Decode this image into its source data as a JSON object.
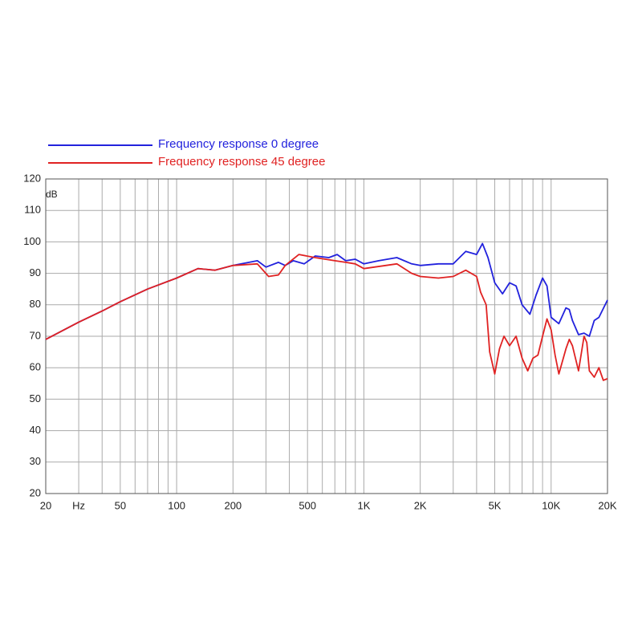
{
  "chart_data": {
    "type": "line",
    "xscale": "log",
    "grid": true,
    "ylabel": "dB",
    "xlim": [
      20,
      20000
    ],
    "ylim": [
      20,
      120
    ],
    "xticks": [
      20,
      {
        "value": 30,
        "label": "Hz"
      },
      50,
      100,
      200,
      500,
      {
        "value": 1000,
        "label": "1K"
      },
      {
        "value": 2000,
        "label": "2K"
      },
      {
        "value": 5000,
        "label": "5K"
      },
      {
        "value": 10000,
        "label": "10K"
      },
      {
        "value": 20000,
        "label": "20K"
      }
    ],
    "xgrid": [
      20,
      30,
      40,
      50,
      60,
      70,
      80,
      90,
      100,
      200,
      300,
      400,
      500,
      600,
      700,
      800,
      900,
      1000,
      2000,
      3000,
      4000,
      5000,
      6000,
      7000,
      8000,
      9000,
      10000,
      20000
    ],
    "yticks": [
      20,
      30,
      40,
      50,
      60,
      70,
      80,
      90,
      100,
      110,
      120
    ],
    "series": [
      {
        "name": "Frequency response 0 degree",
        "color": "#2222dd",
        "x": [
          20,
          30,
          40,
          50,
          70,
          100,
          130,
          160,
          200,
          270,
          300,
          350,
          380,
          420,
          480,
          550,
          650,
          720,
          800,
          900,
          1000,
          1200,
          1500,
          1800,
          2000,
          2500,
          3000,
          3500,
          4000,
          4300,
          4600,
          5000,
          5500,
          6000,
          6500,
          7000,
          7700,
          8300,
          9000,
          9500,
          10000,
          11000,
          12000,
          12500,
          13000,
          14000,
          15000,
          16000,
          17000,
          18000,
          20000
        ],
        "values": [
          69,
          74.5,
          78,
          81,
          85,
          88.5,
          91.5,
          91,
          92.5,
          94,
          92,
          93.5,
          92.5,
          94,
          93,
          95.5,
          95,
          96,
          94,
          94.5,
          93,
          94,
          95,
          93,
          92.5,
          93,
          93,
          97,
          96,
          99.5,
          95,
          87,
          83.5,
          87,
          86,
          80,
          77,
          83,
          88.5,
          86,
          76,
          74,
          79,
          78.5,
          75,
          70.5,
          71,
          70,
          75,
          76,
          81.5
        ]
      },
      {
        "name": "Frequency response 45 degree",
        "color": "#e02222",
        "x": [
          20,
          30,
          40,
          50,
          70,
          100,
          130,
          160,
          200,
          270,
          310,
          350,
          380,
          450,
          550,
          700,
          800,
          900,
          1000,
          1500,
          1800,
          2000,
          2500,
          3000,
          3500,
          4000,
          4200,
          4500,
          4700,
          5000,
          5300,
          5600,
          6000,
          6500,
          7000,
          7500,
          8000,
          8500,
          9000,
          9500,
          10000,
          10500,
          11000,
          12000,
          12500,
          13000,
          14000,
          15000,
          15500,
          16000,
          17000,
          18000,
          19000,
          20000
        ],
        "values": [
          69,
          74.5,
          78,
          81,
          85,
          88.5,
          91.5,
          91,
          92.5,
          93,
          89,
          89.5,
          92.5,
          96,
          95,
          94,
          93.5,
          93,
          91.5,
          93,
          90,
          89,
          88.5,
          89,
          91,
          89,
          84,
          80,
          65,
          58,
          66,
          70,
          67,
          70,
          63,
          59,
          63,
          64,
          70,
          75.5,
          72,
          64,
          58,
          66,
          69,
          67,
          59,
          70,
          68,
          59,
          57,
          60,
          56,
          56.5
        ]
      }
    ]
  }
}
